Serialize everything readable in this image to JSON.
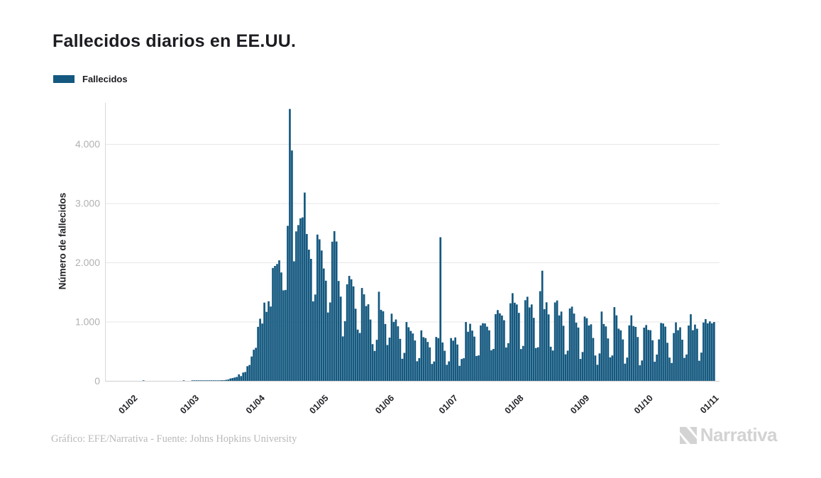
{
  "page": {
    "background": "#ffffff"
  },
  "header": {
    "title": "Fallecidos diarios en EE.UU."
  },
  "legend": {
    "label": "Fallecidos",
    "swatch_color": "#14587F"
  },
  "footer": {
    "credit": "Gráfico: EFE/Narrativa - Fuente: Johns Hopkins University"
  },
  "branding": {
    "logo_text": "Narrativa",
    "logo_icon": "narrativa-n-icon",
    "logo_color": "#d3d3d3"
  },
  "chart_data": {
    "type": "bar",
    "title": "Fallecidos diarios en EE.UU.",
    "series_name": "Fallecidos",
    "xlabel": "",
    "ylabel": "Número de fallecidos",
    "bar_color": "#14587F",
    "grid": "horizontal",
    "legend_position": "top-left",
    "ylim": [
      0,
      4700
    ],
    "y_tick_values": [
      0,
      1000,
      2000,
      3000,
      4000
    ],
    "y_tick_labels": [
      "0",
      "1.000",
      "2.000",
      "3.000",
      "4.000"
    ],
    "x_tick_labels": [
      "01/02",
      "01/03",
      "01/04",
      "01/05",
      "01/06",
      "01/07",
      "01/08",
      "01/09",
      "01/10",
      "01/11"
    ],
    "x_tick_indices": [
      12,
      41,
      72,
      102,
      133,
      163,
      194,
      225,
      255,
      286
    ],
    "values": [
      0,
      0,
      0,
      0,
      0,
      0,
      0,
      0,
      0,
      0,
      0,
      0,
      0,
      0,
      0,
      0,
      0,
      1,
      0,
      0,
      0,
      0,
      0,
      0,
      0,
      0,
      0,
      0,
      0,
      0,
      0,
      0,
      0,
      0,
      0,
      0,
      1,
      0,
      0,
      0,
      1,
      1,
      1,
      4,
      3,
      2,
      3,
      4,
      3,
      6,
      4,
      4,
      7,
      7,
      11,
      10,
      17,
      23,
      40,
      47,
      57,
      66,
      110,
      80,
      140,
      150,
      247,
      268,
      411,
      525,
      558,
      912,
      1049,
      968,
      1321,
      1165,
      1344,
      1255,
      1906,
      1940,
      1973,
      2035,
      1830,
      1528,
      1535,
      2618,
      4591,
      3890,
      2018,
      2524,
      2630,
      2744,
      2760,
      3179,
      2480,
      2215,
      2060,
      1342,
      1458,
      2470,
      2390,
      2201,
      1897,
      1691,
      1154,
      1324,
      2350,
      2528,
      2353,
      1687,
      1422,
      750,
      1008,
      1630,
      1772,
      1715,
      1595,
      1218,
      865,
      808,
      1568,
      1461,
      1263,
      1293,
      1035,
      620,
      505,
      693,
      1505,
      1199,
      1175,
      960,
      605,
      730,
      1134,
      995,
      1036,
      921,
      709,
      373,
      472,
      993,
      905,
      843,
      800,
      682,
      331,
      383,
      852,
      738,
      722,
      657,
      565,
      285,
      327,
      741,
      722,
      2425,
      648,
      508,
      271,
      329,
      722,
      679,
      733,
      614,
      254,
      369,
      382,
      993,
      829,
      964,
      848,
      747,
      419,
      430,
      935,
      973,
      969,
      915,
      853,
      516,
      539,
      1126,
      1195,
      1140,
      1103,
      1024,
      564,
      637,
      1310,
      1480,
      1319,
      1290,
      1148,
      537,
      590,
      1362,
      1420,
      1240,
      1290,
      1064,
      554,
      567,
      1514,
      1860,
      1210,
      1326,
      1122,
      576,
      512,
      1324,
      1357,
      1105,
      1170,
      930,
      448,
      510,
      1222,
      1253,
      1136,
      983,
      900,
      370,
      487,
      1085,
      1058,
      935,
      955,
      724,
      428,
      271,
      463,
      1170,
      960,
      919,
      716,
      397,
      428,
      1245,
      1106,
      881,
      853,
      699,
      290,
      393,
      937,
      1106,
      926,
      911,
      740,
      263,
      344,
      898,
      942,
      860,
      855,
      686,
      323,
      444,
      700,
      977,
      969,
      916,
      643,
      393,
      302,
      807,
      987,
      855,
      904,
      695,
      388,
      445,
      934,
      1125,
      855,
      950,
      880,
      340,
      477,
      985,
      1042,
      971,
      1004,
      972,
      993
    ]
  }
}
